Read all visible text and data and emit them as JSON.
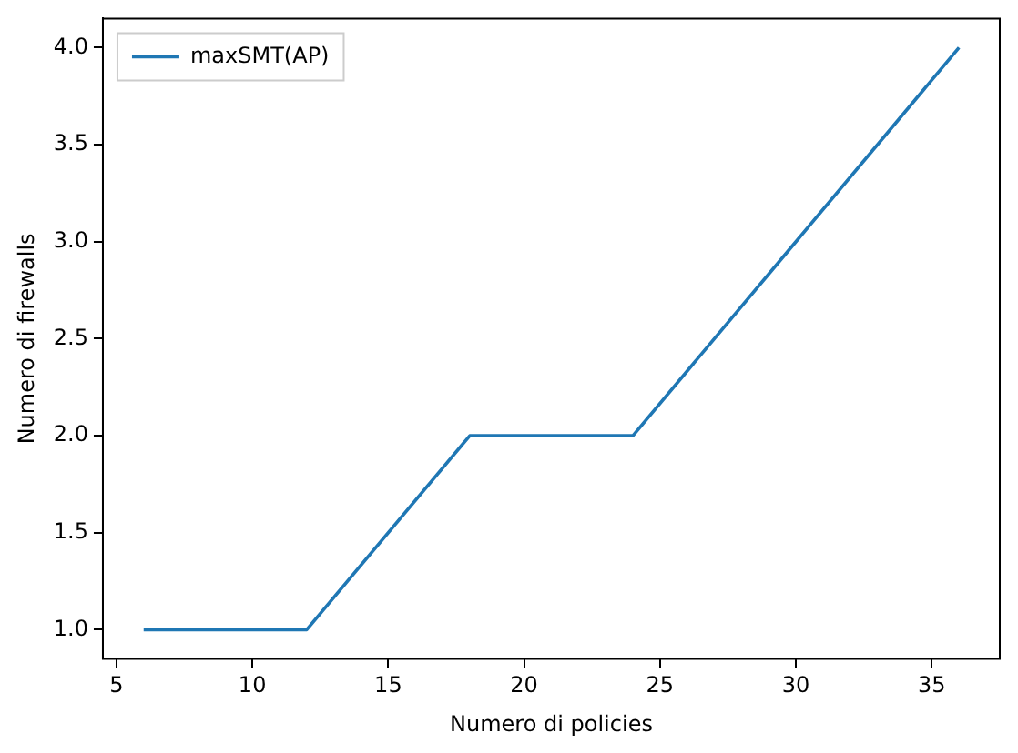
{
  "chart_data": {
    "type": "line",
    "xlabel": "Numero di policies",
    "ylabel": "Numero di firewalls",
    "x": [
      6,
      12,
      18,
      24,
      30,
      36
    ],
    "series": [
      {
        "name": "maxSMT(AP)",
        "color": "#1f77b4",
        "values": [
          1,
          1,
          2,
          2,
          3,
          4
        ]
      }
    ],
    "xlim": [
      4.5,
      37.5
    ],
    "xticks": [
      5,
      10,
      15,
      20,
      25,
      30,
      35
    ],
    "ylim": [
      0.85,
      4.15
    ],
    "yticks": [
      {
        "value": 1,
        "label": "1.0"
      },
      {
        "value": 1.5,
        "label": "1.5"
      },
      {
        "value": 2,
        "label": "2.0"
      },
      {
        "value": 2.5,
        "label": "2.5"
      },
      {
        "value": 3,
        "label": "3.0"
      },
      {
        "value": 3.5,
        "label": "3.5"
      },
      {
        "value": 4,
        "label": "4.0"
      }
    ],
    "grid": false,
    "legend": "top left",
    "marker": "none",
    "line_style": "solid"
  }
}
